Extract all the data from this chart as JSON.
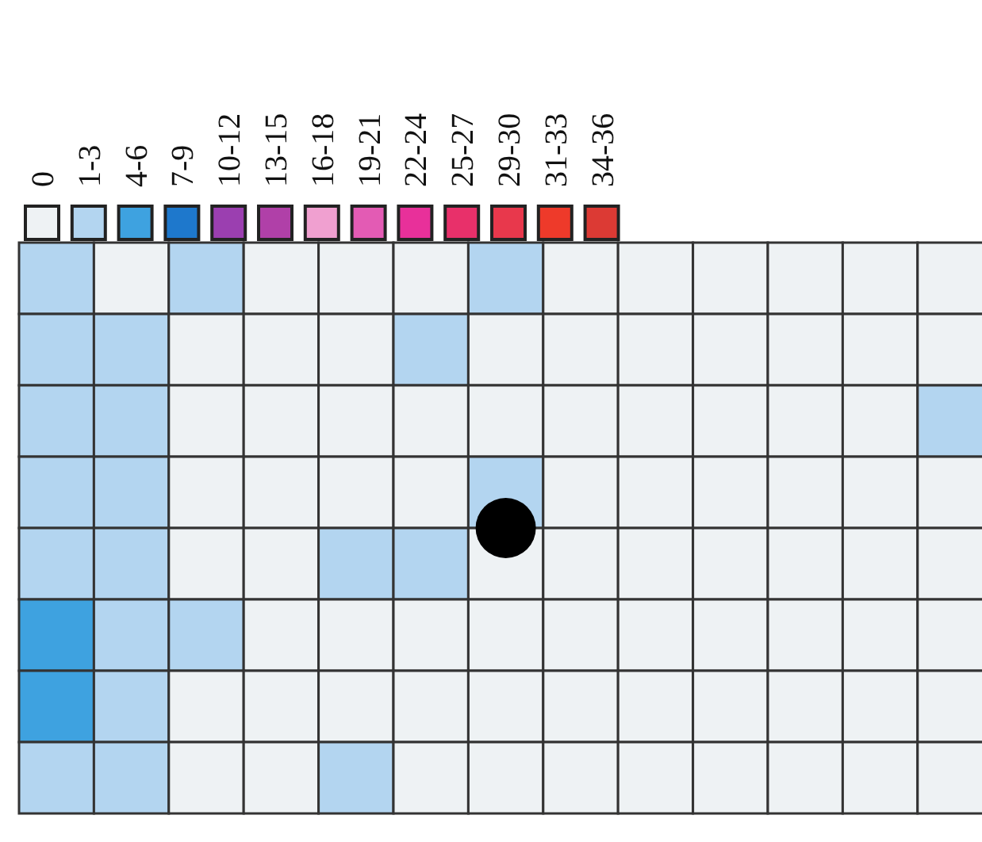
{
  "chart_data": {
    "type": "heatmap",
    "categories": [
      null,
      null,
      null,
      null,
      null,
      null,
      null,
      null,
      null,
      null,
      null,
      null,
      null
    ],
    "y_categories": [
      null,
      null,
      null,
      null,
      null,
      null,
      null,
      null
    ],
    "cells": [
      [
        2,
        0,
        2,
        0,
        0,
        0,
        2,
        0,
        0,
        0,
        0,
        0,
        0
      ],
      [
        2,
        2,
        0,
        0,
        0,
        2,
        0,
        0,
        0,
        0,
        0,
        0,
        0
      ],
      [
        2,
        2,
        0,
        0,
        0,
        0,
        0,
        0,
        0,
        0,
        0,
        0,
        2
      ],
      [
        2,
        2,
        0,
        0,
        0,
        0,
        2,
        0,
        0,
        0,
        0,
        0,
        0
      ],
      [
        2,
        2,
        0,
        0,
        2,
        2,
        0,
        0,
        0,
        0,
        0,
        0,
        0
      ],
      [
        5,
        2,
        2,
        0,
        0,
        0,
        0,
        0,
        0,
        0,
        0,
        0,
        0
      ],
      [
        5,
        2,
        0,
        0,
        0,
        0,
        0,
        0,
        0,
        0,
        0,
        0,
        0
      ],
      [
        2,
        2,
        0,
        0,
        2,
        0,
        0,
        0,
        0,
        0,
        0,
        0,
        0
      ]
    ],
    "cticks": [
      {
        "value": 0,
        "label": "0"
      },
      {
        "value": 2,
        "label": "1-3"
      },
      {
        "value": 5,
        "label": "4-6"
      },
      {
        "value": 8,
        "label": "7-9"
      },
      {
        "value": 11,
        "label": "10-12"
      },
      {
        "value": 14,
        "label": "13-15"
      },
      {
        "value": 17,
        "label": "16-18"
      },
      {
        "value": 20,
        "label": "19-21"
      },
      {
        "value": 23,
        "label": "22-24"
      },
      {
        "value": 26,
        "label": "25-27"
      },
      {
        "value": 29.5,
        "label": "29-30"
      },
      {
        "value": 32,
        "label": "31-33"
      },
      {
        "value": 35,
        "label": "34-36"
      }
    ],
    "colors": [
      "#eef2f4",
      "#b3d5f0",
      "#3ea2e0",
      "#1e78cc",
      "#9b3fb0",
      "#b040a8",
      "#f0a0d0",
      "#e35bb4",
      "#e8309a",
      "#e8306a",
      "#e8384c",
      "#ee3a2a",
      "#dc3a34"
    ]
  }
}
